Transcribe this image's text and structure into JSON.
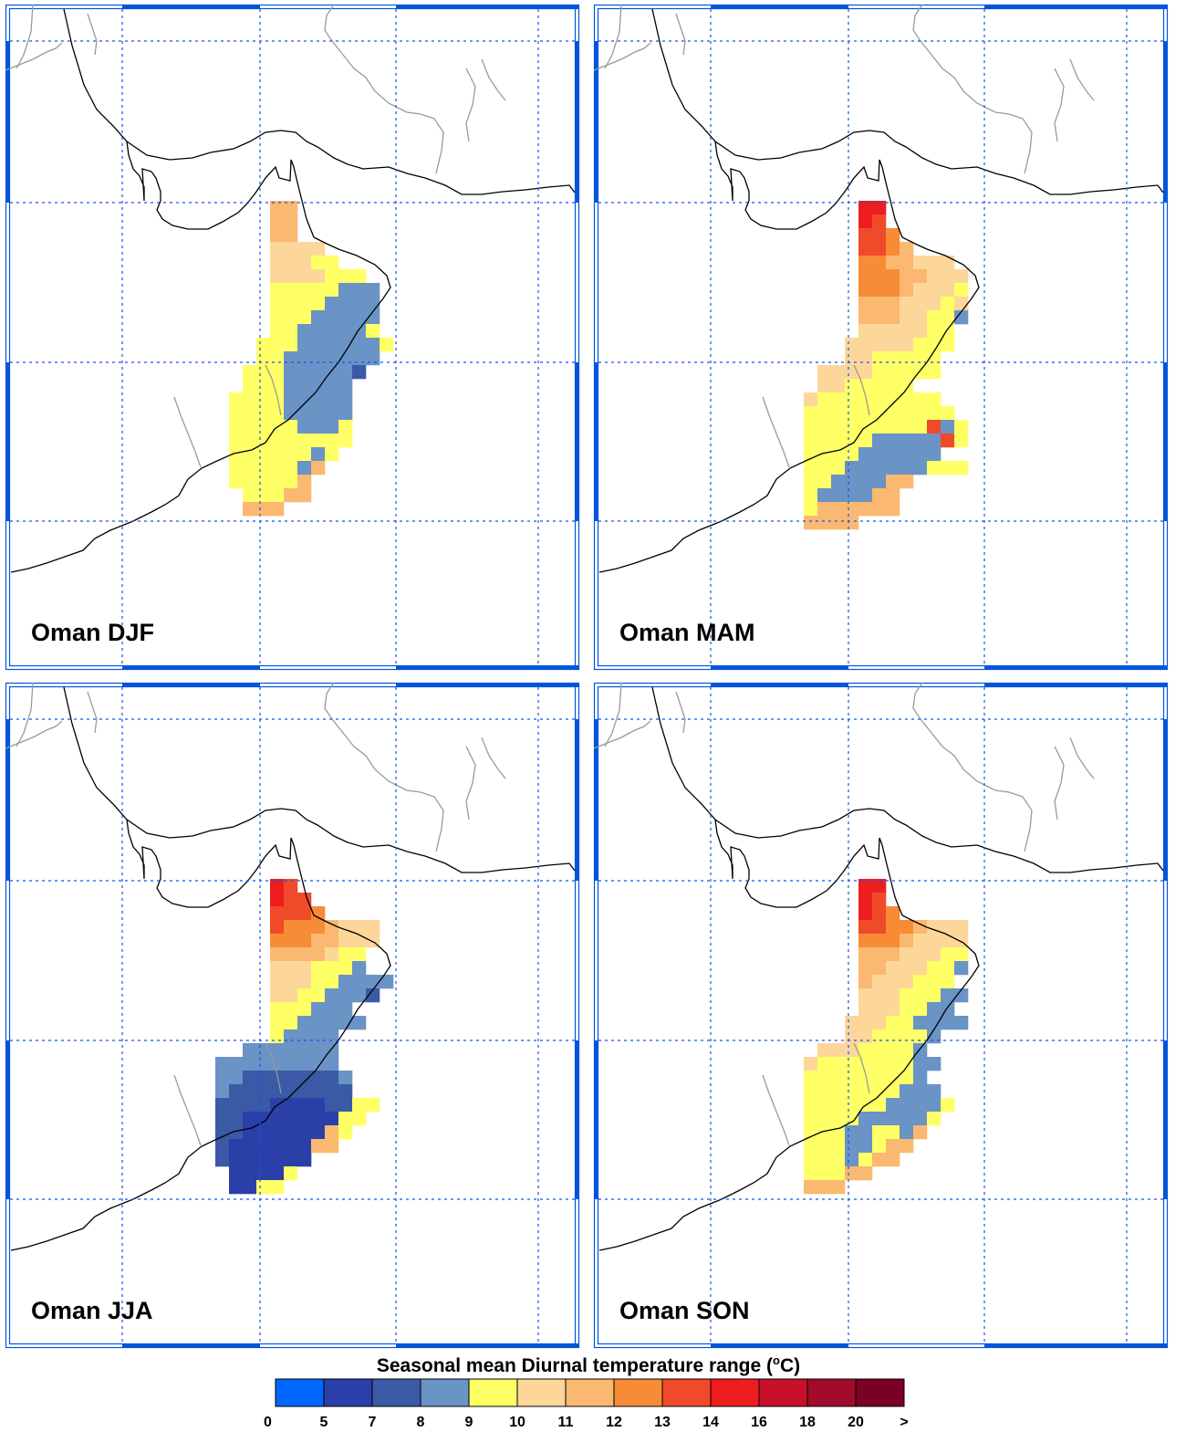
{
  "panels": [
    {
      "label": "Oman DJF",
      "season": "DJF"
    },
    {
      "label": "Oman MAM",
      "season": "MAM"
    },
    {
      "label": "Oman JJA",
      "season": "JJA"
    },
    {
      "label": "Oman SON",
      "season": "SON"
    }
  ],
  "legend": {
    "title": "Seasonal mean Diurnal temperature range (",
    "title_sup": "o",
    "title_end": "C)",
    "colors": [
      "#0066ff",
      "#2b3fa8",
      "#3a5aa6",
      "#6a93c6",
      "#ffff66",
      "#fdd79a",
      "#fbb870",
      "#f88b35",
      "#f04a2a",
      "#ee1d20",
      "#c8102a",
      "#a20b2a",
      "#7a0025"
    ],
    "ticks": [
      "0",
      "5",
      "7",
      "8",
      "9",
      "10",
      "11",
      "12",
      "13",
      "14",
      "16",
      "18",
      "20",
      ">"
    ]
  },
  "colors": {
    "frame": "#0055dd",
    "grid": "#1155ee",
    "coast": "#000000",
    "border": "#9a9a9a"
  }
}
